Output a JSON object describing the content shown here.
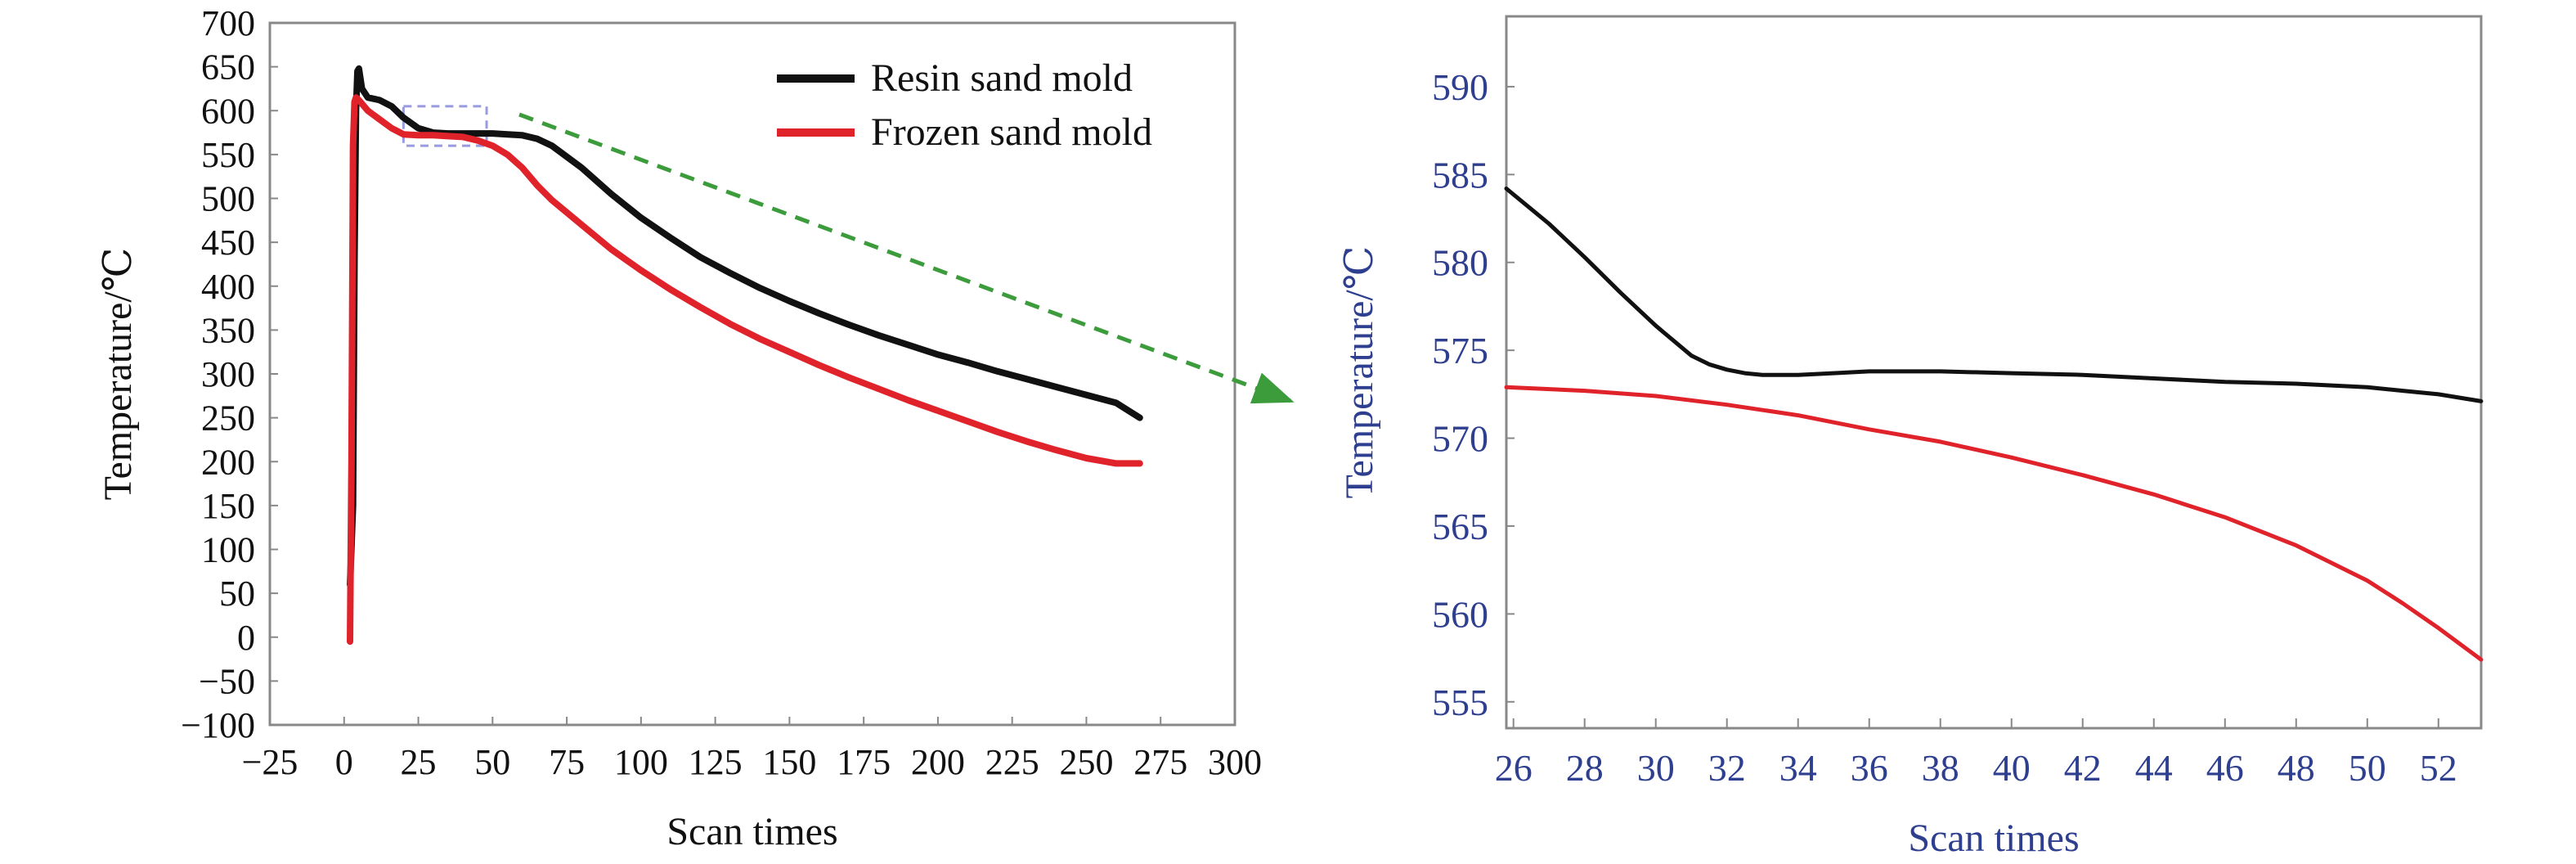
{
  "chart_data": [
    {
      "type": "line",
      "title": "",
      "xlabel": "Scan times",
      "ylabel": "Temperature/℃",
      "xlim": [
        -25,
        300
      ],
      "ylim": [
        -100,
        700
      ],
      "x_ticks": [
        -25,
        0,
        25,
        50,
        75,
        100,
        125,
        150,
        175,
        200,
        225,
        250,
        275,
        300
      ],
      "x_tick_labels": [
        "−25",
        "0",
        "25",
        "50",
        "75",
        "100",
        "125",
        "150",
        "175",
        "200",
        "225",
        "250",
        "275",
        "300"
      ],
      "y_ticks": [
        -100,
        -50,
        0,
        50,
        100,
        150,
        200,
        250,
        300,
        350,
        400,
        450,
        500,
        550,
        600,
        650,
        700
      ],
      "y_tick_labels": [
        "−100",
        "−50",
        "0",
        "50",
        "100",
        "150",
        "200",
        "250",
        "300",
        "350",
        "400",
        "450",
        "500",
        "550",
        "600",
        "650",
        "700"
      ],
      "grid": false,
      "legend_position": "top-right",
      "series": [
        {
          "name": "Resin sand mold",
          "color": "#111111",
          "x": [
            2,
            3,
            3.5,
            4,
            4.5,
            5,
            6,
            8,
            12,
            16,
            20,
            25,
            30,
            35,
            40,
            45,
            50,
            55,
            60,
            65,
            70,
            80,
            90,
            100,
            110,
            120,
            130,
            140,
            150,
            160,
            170,
            180,
            190,
            200,
            210,
            220,
            230,
            240,
            250,
            260,
            268
          ],
          "y": [
            60,
            150,
            430,
            600,
            645,
            648,
            625,
            615,
            612,
            605,
            592,
            580,
            575,
            574,
            574,
            574,
            574,
            573,
            572,
            568,
            560,
            535,
            505,
            478,
            455,
            433,
            415,
            398,
            383,
            369,
            356,
            344,
            333,
            322,
            313,
            303,
            294,
            285,
            276,
            267,
            250
          ]
        },
        {
          "name": "Frozen sand mold",
          "color": "#e0232a",
          "x": [
            2,
            2.5,
            3,
            3.5,
            4,
            5,
            8,
            12,
            16,
            20,
            25,
            30,
            35,
            40,
            45,
            50,
            55,
            60,
            65,
            70,
            80,
            90,
            100,
            110,
            120,
            130,
            140,
            150,
            160,
            170,
            180,
            190,
            200,
            210,
            220,
            230,
            240,
            250,
            260,
            268
          ],
          "y": [
            -5,
            200,
            560,
            610,
            615,
            612,
            600,
            590,
            580,
            573,
            572,
            572,
            571,
            570,
            566,
            560,
            550,
            535,
            515,
            498,
            470,
            442,
            418,
            396,
            376,
            357,
            340,
            325,
            310,
            296,
            283,
            270,
            258,
            246,
            234,
            223,
            213,
            204,
            198,
            198
          ]
        }
      ],
      "annotation": {
        "highlight_box_x": [
          20,
          48
        ],
        "highlight_box_y": [
          560,
          605
        ],
        "arrow_color": "#3c9c3c",
        "box_color": "#9a9ae0"
      }
    },
    {
      "type": "line",
      "title": "",
      "xlabel": "Scan times",
      "ylabel": "Temperature/℃",
      "xlim": [
        25.8,
        53.2
      ],
      "ylim": [
        553.5,
        594
      ],
      "x_ticks": [
        26,
        28,
        30,
        32,
        34,
        36,
        38,
        40,
        42,
        44,
        46,
        48,
        50,
        52
      ],
      "y_ticks": [
        555,
        560,
        565,
        570,
        575,
        580,
        585,
        590
      ],
      "grid": false,
      "axis_text_color": "#2f3f8f",
      "series": [
        {
          "color": "#111111",
          "x": [
            25.8,
            27,
            28,
            29,
            30,
            31,
            31.5,
            32,
            32.5,
            33,
            34,
            35,
            36,
            38,
            40,
            42,
            44,
            46,
            48,
            50,
            51,
            52,
            53.2
          ],
          "y": [
            584.2,
            582.2,
            580.3,
            578.3,
            576.4,
            574.7,
            574.2,
            573.9,
            573.7,
            573.6,
            573.6,
            573.7,
            573.8,
            573.8,
            573.7,
            573.6,
            573.4,
            573.2,
            573.1,
            572.9,
            572.7,
            572.5,
            572.1
          ]
        },
        {
          "color": "#e0232a",
          "x": [
            25.8,
            28,
            30,
            32,
            34,
            36,
            38,
            40,
            42,
            44,
            46,
            48,
            49,
            50,
            51,
            52,
            53.2
          ],
          "y": [
            572.9,
            572.7,
            572.4,
            571.9,
            571.3,
            570.5,
            569.8,
            568.9,
            567.9,
            566.8,
            565.5,
            563.9,
            562.9,
            561.9,
            560.6,
            559.2,
            557.4
          ]
        }
      ]
    }
  ]
}
